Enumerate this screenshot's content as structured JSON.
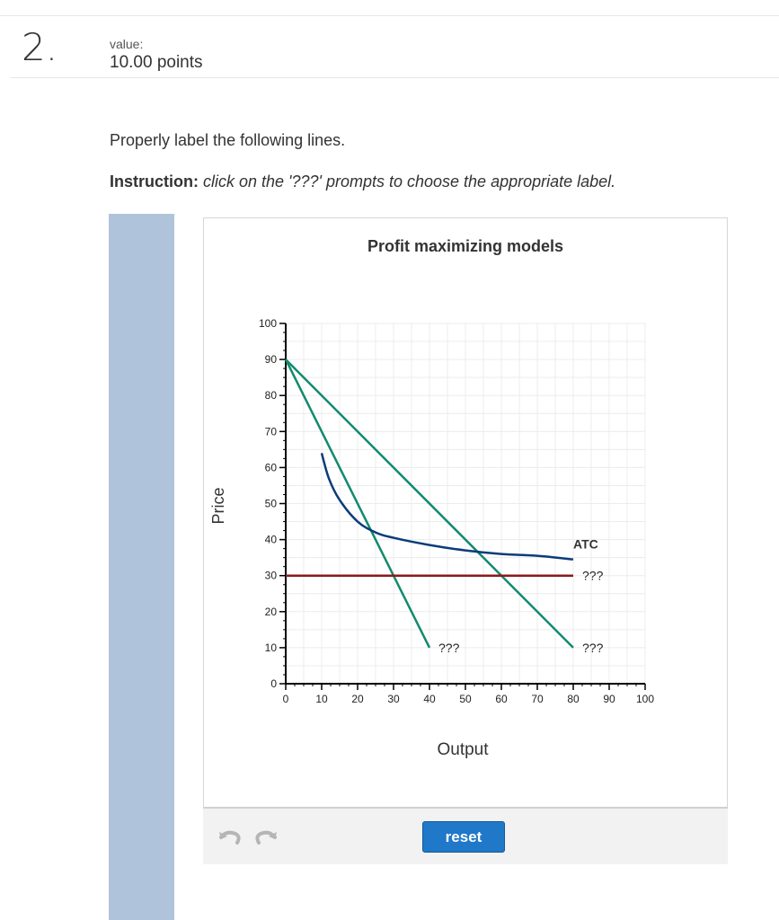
{
  "question": {
    "number": "2.",
    "value_label": "value:",
    "points": "10.00 points"
  },
  "prompt": "Properly label the following lines.",
  "instruction": {
    "label": "Instruction:",
    "text": "click on the '???' prompts to choose the appropriate label."
  },
  "toolbar": {
    "reset_label": "reset"
  },
  "colors": {
    "sidebar": "#afc3db",
    "demand": "#128a6e",
    "marginal_revenue": "#128a6e",
    "atc": "#0b3c7a",
    "price_line": "#8b1a1a",
    "reset_button": "#1f78c8"
  },
  "chart_data": {
    "type": "line",
    "title": "Profit maximizing models",
    "xlabel": "Output",
    "ylabel": "Price",
    "xlim": [
      0,
      100
    ],
    "ylim": [
      0,
      100
    ],
    "x_ticks": [
      0,
      10,
      20,
      30,
      40,
      50,
      60,
      70,
      80,
      90,
      100
    ],
    "y_ticks": [
      0,
      10,
      20,
      30,
      40,
      50,
      60,
      70,
      80,
      90,
      100
    ],
    "grid": true,
    "series": [
      {
        "label": "???",
        "color": "#128a6e",
        "points": [
          [
            0,
            90
          ],
          [
            40,
            10
          ]
        ]
      },
      {
        "label": "???",
        "color": "#128a6e",
        "points": [
          [
            0,
            90
          ],
          [
            80,
            10
          ]
        ]
      },
      {
        "label": "???",
        "color": "#8b1a1a",
        "points": [
          [
            0,
            30
          ],
          [
            80,
            30
          ]
        ]
      },
      {
        "label": "ATC",
        "color": "#0b3c7a",
        "points": [
          [
            10,
            64
          ],
          [
            12,
            57
          ],
          [
            15,
            51
          ],
          [
            20,
            45
          ],
          [
            25,
            42
          ],
          [
            30,
            40.5
          ],
          [
            40,
            38.5
          ],
          [
            50,
            37
          ],
          [
            60,
            36
          ],
          [
            70,
            35.5
          ],
          [
            80,
            34.5
          ]
        ]
      }
    ]
  }
}
